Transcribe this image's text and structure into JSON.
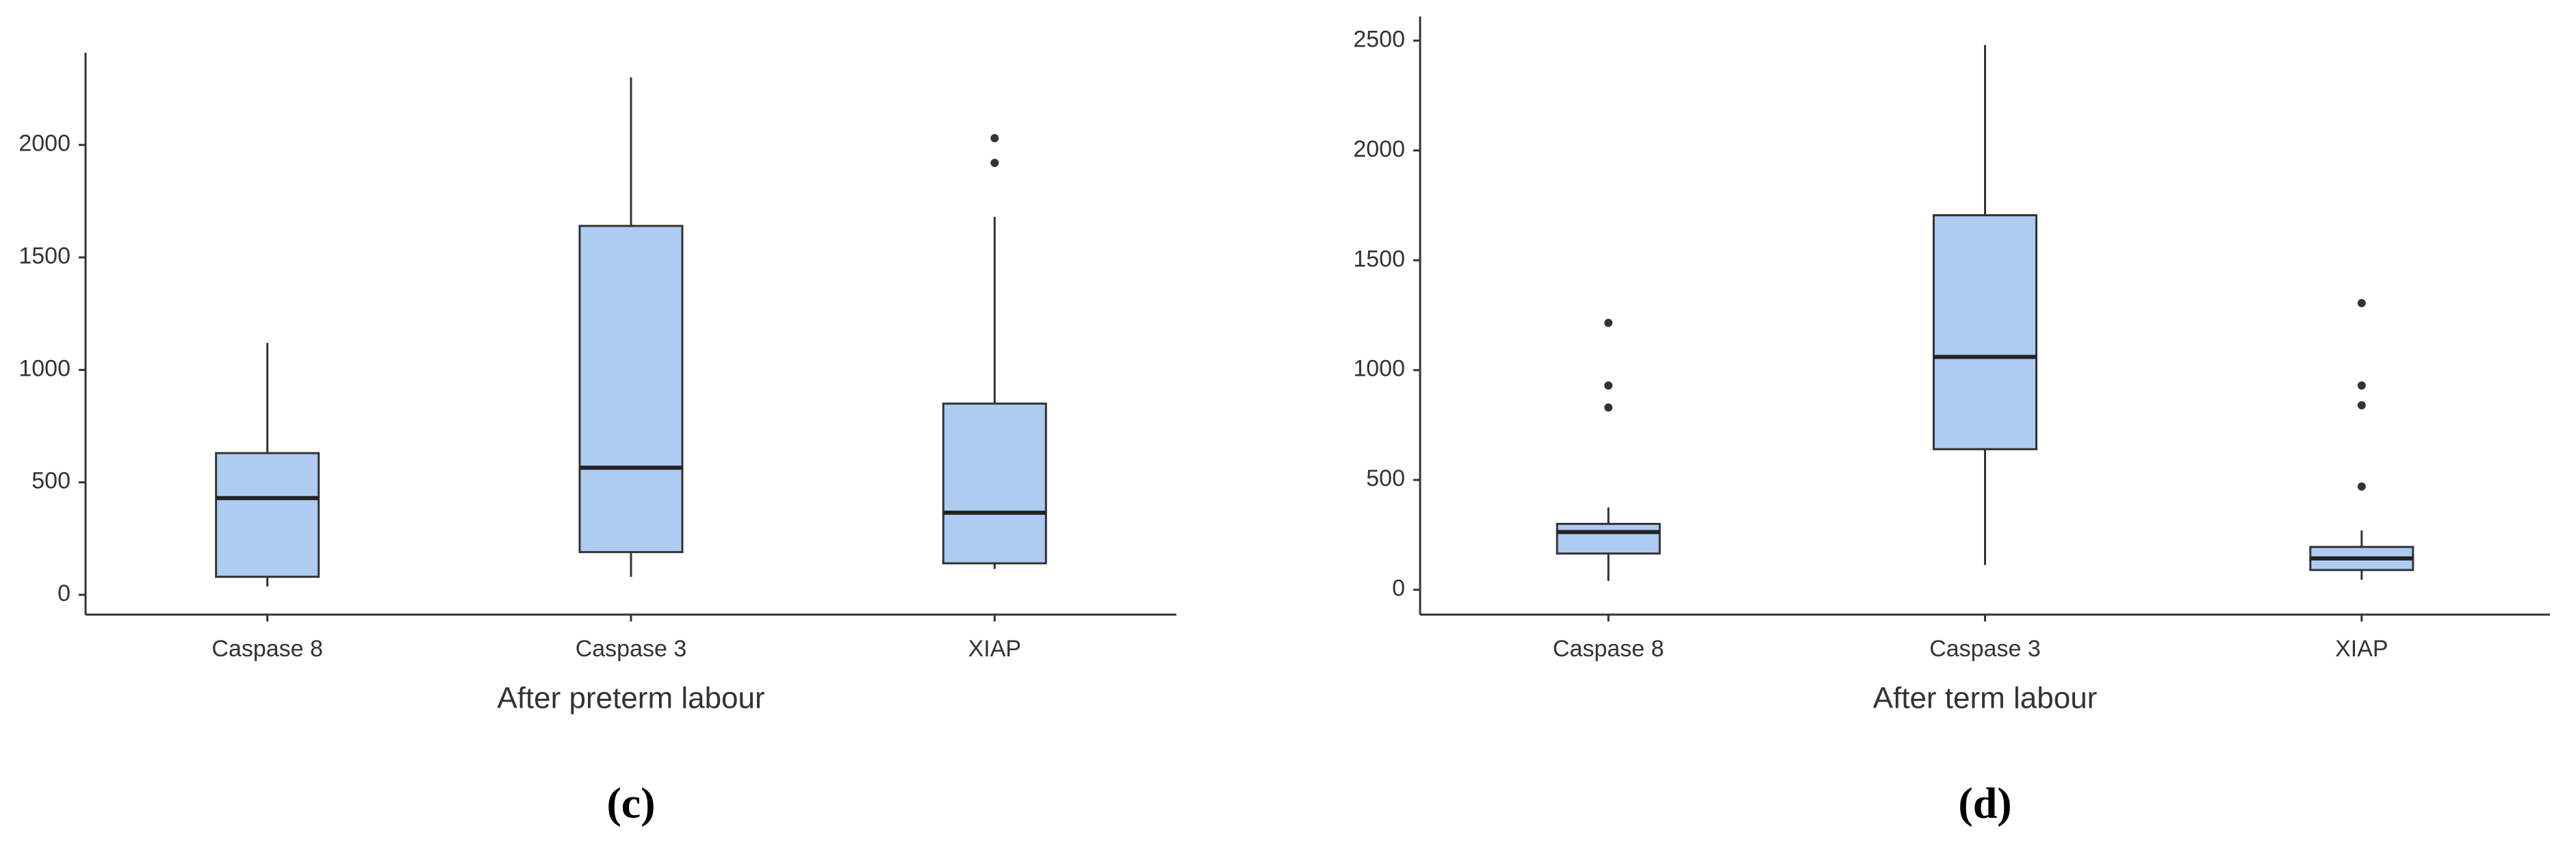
{
  "chart_data": [
    {
      "type": "box",
      "xlabel": "After preterm labour",
      "panel_label": "(c)",
      "categories": [
        "Caspase 8",
        "Caspase 3",
        "XIAP"
      ],
      "boxes": [
        {
          "whislo": 37,
          "q1": 80,
          "med": 430,
          "q3": 630,
          "whishi": 1120,
          "fliers": []
        },
        {
          "whislo": 80,
          "q1": 190,
          "med": 565,
          "q3": 1640,
          "whishi": 2300,
          "fliers": []
        },
        {
          "whislo": 115,
          "q1": 140,
          "med": 365,
          "q3": 850,
          "whishi": 1680,
          "fliers": [
            1920,
            2030
          ]
        }
      ],
      "color": "#aecbf2",
      "ylim": [
        -88,
        2410
      ],
      "yticks": [
        0,
        500,
        1000,
        1500,
        2000
      ]
    },
    {
      "type": "box",
      "xlabel": "After term labour",
      "panel_label": "(d)",
      "categories": [
        "Caspase 8",
        "Caspase 3",
        "XIAP"
      ],
      "boxes": [
        {
          "whislo": 40,
          "q1": 165,
          "med": 263,
          "q3": 300,
          "whishi": 375,
          "fliers": [
            830,
            930,
            1215
          ]
        },
        {
          "whislo": 113,
          "q1": 640,
          "med": 1060,
          "q3": 1705,
          "whishi": 2480,
          "fliers": []
        },
        {
          "whislo": 45,
          "q1": 90,
          "med": 143,
          "q3": 195,
          "whishi": 270,
          "fliers": [
            470,
            840,
            930,
            1305
          ]
        }
      ],
      "color": "#aecbf2",
      "ylim": [
        -113,
        2610
      ],
      "yticks": [
        0,
        500,
        1000,
        1500,
        2000,
        2500
      ]
    }
  ]
}
